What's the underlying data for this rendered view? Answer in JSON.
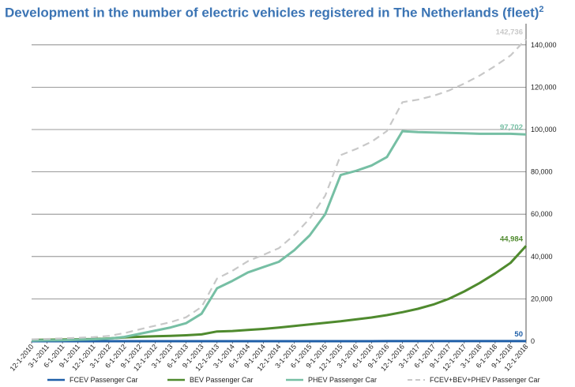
{
  "chart_data": {
    "type": "line",
    "title": "Development in the number of electric vehicles registered in The Netherlands (fleet)",
    "title_superscript": "2",
    "ylim": [
      0,
      150000
    ],
    "y_ticks": [
      0,
      20000,
      40000,
      60000,
      80000,
      100000,
      120000,
      140000
    ],
    "y_tick_labels": [
      "0",
      "20,000",
      "40,000",
      "60,000",
      "80,000",
      "100,000",
      "120,000",
      "140,000"
    ],
    "y_axis_position": "right",
    "grid": true,
    "legend_position": "bottom",
    "categories": [
      "12-1-2010",
      "3-1-2011",
      "6-1-2011",
      "9-1-2011",
      "12-1-2011",
      "3-1-2012",
      "6-1-2012",
      "9-1-2012",
      "12-1-2012",
      "3-1-2013",
      "6-1-2013",
      "9-1-2013",
      "12-1-2013",
      "3-1-2014",
      "6-1-2014",
      "9-1-2014",
      "12-1-2014",
      "3-1-2015",
      "6-1-2015",
      "9-1-2015",
      "12-1-2015",
      "3-1-2016",
      "6-1-2016",
      "9-1-2016",
      "12-1-2016",
      "3-1-2017",
      "6-1-2017",
      "9-1-2017",
      "12-1-2017",
      "3-1-2018",
      "6-1-2018",
      "9-1-2018",
      "12-1-2018"
    ],
    "series": [
      {
        "name": "FCEV Passenger Car",
        "color": "#1f5fa8",
        "dash": false,
        "end_label": "50",
        "values": [
          0,
          0,
          0,
          0,
          0,
          0,
          0,
          0,
          0,
          0,
          0,
          0,
          0,
          0,
          0,
          0,
          0,
          0,
          0,
          10,
          10,
          10,
          15,
          20,
          20,
          25,
          30,
          30,
          35,
          40,
          45,
          48,
          50
        ]
      },
      {
        "name": "BEV Passenger Car",
        "color": "#4f8a2e",
        "dash": false,
        "end_label": "44,984",
        "values": [
          600,
          700,
          800,
          900,
          1000,
          1300,
          1800,
          2100,
          2300,
          2500,
          2800,
          3200,
          4600,
          4800,
          5300,
          5800,
          6400,
          7200,
          7900,
          8700,
          9400,
          10300,
          11200,
          12300,
          13700,
          15300,
          17300,
          20000,
          23500,
          27500,
          32000,
          37000,
          44984
        ]
      },
      {
        "name": "PHEV Passenger Car",
        "color": "#76bfa4",
        "dash": false,
        "end_label": "97,702",
        "values": [
          300,
          400,
          500,
          700,
          900,
          1200,
          2000,
          3500,
          5000,
          6500,
          8500,
          13000,
          25000,
          28500,
          32500,
          35000,
          37500,
          43000,
          50000,
          60000,
          78500,
          80500,
          83000,
          87000,
          99200,
          98800,
          98600,
          98400,
          98200,
          98000,
          98000,
          98000,
          97702
        ]
      },
      {
        "name": "FCEV+BEV+PHEV  Passenger Car",
        "color": "#c8c8c8",
        "dash": true,
        "end_label": "142,736",
        "values": [
          900,
          1100,
          1300,
          1600,
          1900,
          2500,
          3800,
          5600,
          7300,
          9000,
          11300,
          16200,
          29600,
          33300,
          37800,
          40800,
          43900,
          50200,
          57900,
          68700,
          87900,
          90800,
          94200,
          99300,
          112900,
          114100,
          115900,
          118400,
          121700,
          125500,
          130000,
          135000,
          142736
        ]
      }
    ]
  }
}
